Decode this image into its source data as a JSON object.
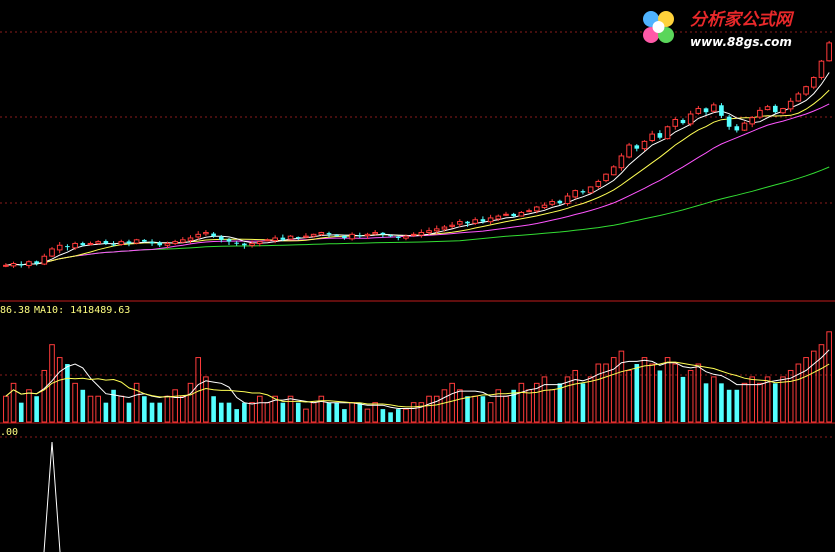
{
  "logo": {
    "title": "分析家公式网",
    "url": "www.88gs.com",
    "title_color": "#e8282a",
    "url_color": "#ffffff"
  },
  "colors": {
    "up": "#ff3b3b",
    "down": "#54ffff",
    "ma_short": "#ffffff",
    "ma_mid": "#ffff55",
    "ma_long": "#ff55ff",
    "ma_longest": "#33dd33",
    "grid": "#8a1c1c",
    "separator": "#c01c1c",
    "text": "#ffff80"
  },
  "volume_panel": {
    "ma5_label_partial": "86.38",
    "ma10_label": "MA10: 1418489.63"
  },
  "indicator_panel": {
    "label_partial": ".00"
  },
  "chart_data": [
    {
      "type": "candlestick",
      "panel": "price",
      "note": "relative price index, first visible close = 100",
      "close": [
        100,
        101,
        100,
        102,
        101,
        105,
        109,
        111,
        110,
        112,
        111,
        112,
        113,
        112,
        111,
        113,
        112,
        114,
        113,
        112,
        111,
        112,
        113,
        114,
        115,
        117,
        118,
        116,
        114,
        113,
        112,
        111,
        112,
        113,
        114,
        115,
        114,
        116,
        115,
        116,
        117,
        118,
        117,
        116,
        115,
        117,
        116,
        117,
        118,
        117,
        116,
        115,
        116,
        117,
        118,
        119,
        120,
        121,
        122,
        124,
        123,
        125,
        124,
        126,
        127,
        128,
        127,
        129,
        130,
        132,
        133,
        135,
        134,
        138,
        141,
        140,
        143,
        146,
        150,
        154,
        160,
        166,
        164,
        168,
        172,
        170,
        176,
        180,
        178,
        183,
        186,
        184,
        188,
        182,
        176,
        174,
        178,
        181,
        185,
        187,
        184,
        186,
        190,
        194,
        198,
        203,
        212,
        222
      ],
      "ma_fast": "5-bar moving average of close",
      "ma_mid": "10-bar moving average of close",
      "ma_slow": "20-bar moving average of close",
      "ma_longest": "60-bar moving average of close",
      "grid": true
    },
    {
      "type": "bar",
      "panel": "volume",
      "note": "relative volume, same bars as price panel",
      "values": [
        4,
        6,
        3,
        5,
        4,
        8,
        12,
        10,
        9,
        6,
        5,
        4,
        4,
        3,
        5,
        4,
        3,
        6,
        4,
        3,
        3,
        4,
        5,
        4,
        6,
        10,
        7,
        4,
        3,
        3,
        2,
        3,
        3,
        4,
        3,
        4,
        3,
        4,
        3,
        2,
        3,
        4,
        3,
        3,
        2,
        3,
        3,
        2,
        3,
        2,
        1.5,
        2,
        2,
        3,
        3,
        4,
        4,
        5,
        6,
        5,
        4,
        4,
        4,
        3,
        5,
        4,
        5,
        6,
        5,
        6,
        7,
        5,
        6,
        7,
        8,
        6,
        7,
        9,
        9,
        10,
        11,
        8,
        9,
        10,
        9,
        8,
        10,
        9,
        7,
        8,
        9,
        6,
        7,
        6,
        5,
        5,
        6,
        7,
        6,
        7,
        6,
        7,
        8,
        9,
        10,
        11,
        12,
        14
      ],
      "ma_fast": "5-bar moving average of volume",
      "ma_slow": "10-bar moving average of volume"
    },
    {
      "type": "line",
      "panel": "indicator",
      "note": "single spike indicator",
      "spike_index": 6,
      "values_max": 1
    }
  ]
}
